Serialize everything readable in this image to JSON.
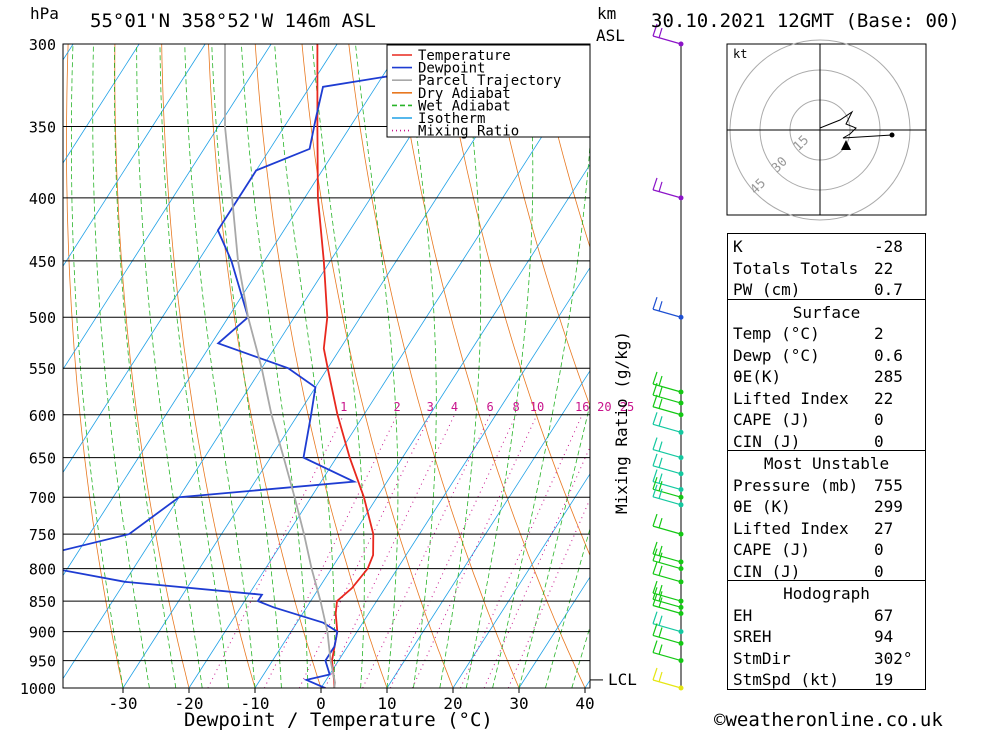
{
  "header": {
    "hpa_unit": "hPa",
    "location": "55°01'N  358°52'W  146m  ASL",
    "km_label": "km",
    "asl_label": "ASL",
    "datetime": "30.10.2021  12GMT  (Base: 00)"
  },
  "legend": [
    {
      "name": "Temperature",
      "color": "#e8281e",
      "style": "solid"
    },
    {
      "name": "Dewpoint",
      "color": "#1e3cd2",
      "style": "solid"
    },
    {
      "name": "Parcel Trajectory",
      "color": "#a8a8a8",
      "style": "solid"
    },
    {
      "name": "Dry Adiabat",
      "color": "#e87820",
      "style": "solid"
    },
    {
      "name": "Wet Adiabat",
      "color": "#28b428",
      "style": "dashed"
    },
    {
      "name": "Isotherm",
      "color": "#1ea0e6",
      "style": "solid"
    },
    {
      "name": "Mixing Ratio",
      "color": "#c8148c",
      "style": "dotted"
    }
  ],
  "chart_data": {
    "type": "line",
    "title": "Skew-T log-P sounding",
    "xlabel": "Dewpoint / Temperature (°C)",
    "ylabel": "hPa",
    "mixing_ratio_axis_label": "Mixing Ratio (g/kg)",
    "x_ticks": [
      -30,
      -20,
      -10,
      0,
      10,
      20,
      30,
      40
    ],
    "pressure_levels": [
      300,
      350,
      400,
      450,
      500,
      550,
      600,
      650,
      700,
      750,
      800,
      850,
      900,
      950,
      1000
    ],
    "mixing_ratio_labels": [
      "1",
      "2",
      "3",
      "4",
      "6",
      "8",
      "10",
      "16",
      "20",
      "25"
    ],
    "lcl_label": "LCL",
    "series": [
      {
        "name": "Temperature",
        "color": "#e8281e",
        "points": [
          [
            1000,
            2
          ],
          [
            990,
            1.5
          ],
          [
            950,
            -1
          ],
          [
            900,
            -3
          ],
          [
            870,
            -5
          ],
          [
            850,
            -6
          ],
          [
            830,
            -5
          ],
          [
            800,
            -4.5
          ],
          [
            780,
            -5
          ],
          [
            750,
            -7
          ],
          [
            700,
            -12
          ],
          [
            650,
            -18
          ],
          [
            600,
            -24
          ],
          [
            550,
            -30
          ],
          [
            530,
            -32.5
          ],
          [
            500,
            -35
          ],
          [
            450,
            -41
          ],
          [
            400,
            -48
          ],
          [
            350,
            -55
          ],
          [
            300,
            -63
          ]
        ]
      },
      {
        "name": "Dewpoint",
        "color": "#1e3cd2",
        "points": [
          [
            1000,
            0.6
          ],
          [
            985,
            -3
          ],
          [
            975,
            0
          ],
          [
            950,
            -2
          ],
          [
            925,
            -2
          ],
          [
            900,
            -3
          ],
          [
            885,
            -6
          ],
          [
            860,
            -15
          ],
          [
            850,
            -18
          ],
          [
            840,
            -18
          ],
          [
            820,
            -40
          ],
          [
            800,
            -52
          ],
          [
            780,
            -55
          ],
          [
            750,
            -44
          ],
          [
            700,
            -40
          ],
          [
            680,
            -15
          ],
          [
            650,
            -25
          ],
          [
            600,
            -28
          ],
          [
            570,
            -30
          ],
          [
            550,
            -36
          ],
          [
            525,
            -49
          ],
          [
            500,
            -47
          ],
          [
            450,
            -55
          ],
          [
            425,
            -60
          ],
          [
            380,
            -60
          ],
          [
            365,
            -54
          ],
          [
            345,
            -56
          ],
          [
            325,
            -58
          ],
          [
            315,
            -44
          ],
          [
            300,
            -48
          ]
        ]
      },
      {
        "name": "Parcel Trajectory",
        "color": "#a8a8a8",
        "points": [
          [
            1000,
            2
          ],
          [
            990,
            1.6
          ],
          [
            950,
            -1.2
          ],
          [
            900,
            -4.5
          ],
          [
            850,
            -8.5
          ],
          [
            800,
            -13
          ],
          [
            750,
            -17.5
          ],
          [
            700,
            -22.5
          ],
          [
            650,
            -28
          ],
          [
            600,
            -34
          ],
          [
            550,
            -40
          ],
          [
            500,
            -47
          ],
          [
            450,
            -54
          ],
          [
            400,
            -61
          ],
          [
            350,
            -69
          ],
          [
            300,
            -77
          ]
        ]
      }
    ],
    "hodograph": {
      "units_label": "kt",
      "ring_labels": [
        "15",
        "30",
        "45"
      ]
    },
    "wind_profile": [
      {
        "p": 300,
        "color": "#8c14c8"
      },
      {
        "p": 400,
        "color": "#8c14c8"
      },
      {
        "p": 500,
        "color": "#1e50d2"
      },
      {
        "p": 575,
        "color": "#14c814"
      },
      {
        "p": 587,
        "color": "#14c814"
      },
      {
        "p": 600,
        "color": "#14c814"
      },
      {
        "p": 620,
        "color": "#14c8a0"
      },
      {
        "p": 650,
        "color": "#14c8a0"
      },
      {
        "p": 670,
        "color": "#14c8a0"
      },
      {
        "p": 690,
        "color": "#14c8a0"
      },
      {
        "p": 700,
        "color": "#14c814"
      },
      {
        "p": 710,
        "color": "#14c8a0"
      },
      {
        "p": 750,
        "color": "#14c814"
      },
      {
        "p": 790,
        "color": "#14c814"
      },
      {
        "p": 800,
        "color": "#14c814"
      },
      {
        "p": 820,
        "color": "#14c814"
      },
      {
        "p": 850,
        "color": "#14c814"
      },
      {
        "p": 860,
        "color": "#14c814"
      },
      {
        "p": 870,
        "color": "#14c814"
      },
      {
        "p": 900,
        "color": "#14c8a0"
      },
      {
        "p": 920,
        "color": "#14c814"
      },
      {
        "p": 950,
        "color": "#14c814"
      },
      {
        "p": 1000,
        "color": "#e6e614"
      }
    ]
  },
  "params": {
    "top": [
      {
        "label": "K",
        "value": "-28"
      },
      {
        "label": "Totals Totals",
        "value": "22"
      },
      {
        "label": "PW (cm)",
        "value": "0.7"
      }
    ],
    "surface": {
      "title": "Surface",
      "rows": [
        {
          "label": "Temp (°C)",
          "value": "2"
        },
        {
          "label": "Dewp (°C)",
          "value": "0.6"
        },
        {
          "label": "θE(K)",
          "value": "285"
        },
        {
          "label": "Lifted Index",
          "value": "22"
        },
        {
          "label": "CAPE (J)",
          "value": "0"
        },
        {
          "label": "CIN (J)",
          "value": "0"
        }
      ]
    },
    "most_unstable": {
      "title": "Most Unstable",
      "rows": [
        {
          "label": "Pressure (mb)",
          "value": "755"
        },
        {
          "label": "θE (K)",
          "value": "299"
        },
        {
          "label": "Lifted Index",
          "value": "27"
        },
        {
          "label": "CAPE (J)",
          "value": "0"
        },
        {
          "label": "CIN (J)",
          "value": "0"
        }
      ]
    },
    "hodograph": {
      "title": "Hodograph",
      "rows": [
        {
          "label": "EH",
          "value": "67"
        },
        {
          "label": "SREH",
          "value": "94"
        },
        {
          "label": "StmDir",
          "value": "302°"
        },
        {
          "label": "StmSpd (kt)",
          "value": "19"
        }
      ]
    }
  },
  "footer": {
    "credit": "©weatheronline.co.uk"
  }
}
